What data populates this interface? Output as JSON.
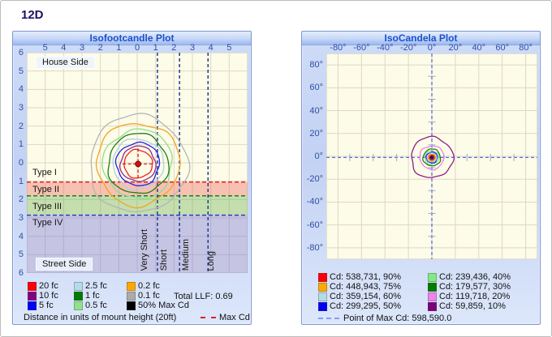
{
  "page_title": "12D",
  "panels": {
    "isofootcandle": {
      "title": "Isofootcandle Plot",
      "house_side_label": "House Side",
      "street_side_label": "Street Side",
      "zone_labels": [
        "Type I",
        "Type II",
        "Type III",
        "Type IV"
      ],
      "distribution_labels": [
        "Very Short",
        "Short",
        "Medium",
        "Long"
      ],
      "legend": [
        {
          "label": "20 fc",
          "color": "#fb0007"
        },
        {
          "label": "10 fc",
          "color": "#830083"
        },
        {
          "label": "5 fc",
          "color": "#0000f6"
        },
        {
          "label": "2.5 fc",
          "color": "#b4dce8"
        },
        {
          "label": "1 fc",
          "color": "#017c01"
        },
        {
          "label": "0.5 fc",
          "color": "#8fe38f"
        },
        {
          "label": "0.2 fc",
          "color": "#ffa900"
        },
        {
          "label": "0.1 fc",
          "color": "#ababab"
        },
        {
          "label": "50% Max Cd",
          "color": "#000000"
        }
      ],
      "total_llf_label": "Total LLF: 0.69",
      "footer_label": "Distance in units of mount height (20ft)",
      "max_cd_label": "Max Cd"
    },
    "isocandela": {
      "title": "IsoCandela Plot",
      "legend": [
        {
          "label": "Cd: 538,731, 90%",
          "color": "#fb0007"
        },
        {
          "label": "Cd: 448,943, 75%",
          "color": "#ffa900"
        },
        {
          "label": "Cd: 359,154, 60%",
          "color": "#b4dce8"
        },
        {
          "label": "Cd: 299,295, 50%",
          "color": "#0000f6"
        },
        {
          "label": "Cd: 239,436, 40%",
          "color": "#84e884"
        },
        {
          "label": "Cd: 179,577, 30%",
          "color": "#017c01"
        },
        {
          "label": "Cd: 119,718, 20%",
          "color": "#ee82ee"
        },
        {
          "label": "Cd: 59,859, 10%",
          "color": "#7c007c"
        }
      ],
      "max_point_label": "Point of Max Cd: 598,590.0"
    }
  },
  "chart_data": [
    {
      "type": "contour",
      "title": "Isofootcandle Plot",
      "axis_note": "Distance in units of mount height (20ft)",
      "x_tick_labels": [
        "5",
        "4",
        "3",
        "2",
        "1",
        "0",
        "1",
        "2",
        "3",
        "4",
        "5"
      ],
      "x_tick_values_mh": [
        -5,
        -4,
        -3,
        -2,
        -1,
        0,
        1,
        2,
        3,
        4,
        5
      ],
      "y_tick_labels": [
        "6",
        "5",
        "4",
        "3",
        "2",
        "1",
        "0",
        "1",
        "2",
        "3",
        "4",
        "5",
        "6"
      ],
      "x_range_mh": [
        -6,
        6
      ],
      "y_range_mh": [
        -6,
        6
      ],
      "grid": true,
      "center_mh": [
        0.05,
        0.06
      ],
      "contours": [
        {
          "label": "0.1 fc",
          "color": "#b4b4b4",
          "radius_mh": 2.65
        },
        {
          "label": "0.2 fc",
          "color": "#f2a41e",
          "radius_mh": 2.25
        },
        {
          "label": "0.5 fc",
          "color": "#8fdc8f",
          "radius_mh": 1.88
        },
        {
          "label": "1 fc",
          "color": "#1e7d1e",
          "radius_mh": 1.64
        },
        {
          "label": "2.5 fc",
          "color": "#aed0e2",
          "radius_mh": 1.38
        },
        {
          "label": "5 fc",
          "color": "#2121ee",
          "radius_mh": 1.17
        },
        {
          "label": "10 fc",
          "color": "#8c2a8c",
          "radius_mh": 0.96
        },
        {
          "label": "20 fc",
          "color": "#ee2222",
          "radius_mh": 0.77
        }
      ],
      "zone_boundaries": [
        {
          "street_y_mh": 1.05,
          "color": "#ee2222",
          "fill_below": "rgba(236,96,86,0.38)"
        },
        {
          "street_y_mh": 1.8,
          "color": "#1e7d1e",
          "fill_below": "rgba(110,178,88,0.40)"
        },
        {
          "street_y_mh": 2.85,
          "color": "#2a3bd0",
          "fill_below": "rgba(118,118,216,0.42)"
        }
      ],
      "longitudinal_lines_x_mh": [
        1.1,
        2.3,
        3.85
      ],
      "distribution_label_x_mh": [
        0.42,
        1.52,
        2.71,
        4.08
      ],
      "total_llf": 0.69
    },
    {
      "type": "contour",
      "title": "IsoCandela Plot",
      "x_tick_labels": [
        "-80°",
        "-60°",
        "-40°",
        "-20°",
        "0°",
        "20°",
        "40°",
        "60°",
        "80°"
      ],
      "x_tick_values_deg": [
        -80,
        -60,
        -40,
        -20,
        0,
        20,
        40,
        60,
        80
      ],
      "y_tick_labels": [
        "80°",
        "60°",
        "40°",
        "20°",
        "0°",
        "-20°",
        "-40°",
        "-60°",
        "-80°"
      ],
      "y_tick_values_deg": [
        80,
        60,
        40,
        20,
        0,
        -20,
        -40,
        -60,
        -80
      ],
      "x_range_deg": [
        -90,
        90
      ],
      "y_range_deg": [
        -90,
        90
      ],
      "grid": true,
      "center_deg": [
        0,
        1
      ],
      "crosshair_tick_deg": [
        -70,
        -50,
        -30,
        -10,
        10,
        30,
        50,
        70
      ],
      "contours": [
        {
          "cd": "59,859",
          "percent": "10%",
          "color": "#8b1f8b",
          "radius_deg": 17.8
        },
        {
          "cd": "119,718",
          "percent": "20%",
          "color": "#ee82ee",
          "radius_deg": 10.3
        },
        {
          "cd": "179,577",
          "percent": "30%",
          "color": "#1e7d1e",
          "radius_deg": 7.4
        },
        {
          "cd": "239,436",
          "percent": "40%",
          "color": "#80e080",
          "radius_deg": 5.9
        },
        {
          "cd": "299,295",
          "percent": "50%",
          "color": "#2121ee",
          "radius_deg": 4.7
        },
        {
          "cd": "359,154",
          "percent": "60%",
          "color": "#aed0e2",
          "radius_deg": 3.8
        },
        {
          "cd": "448,943",
          "percent": "75%",
          "color": "#ff9c00",
          "radius_deg": 2.9
        },
        {
          "cd": "538,731",
          "percent": "90%",
          "color": "#ee2222",
          "radius_deg": 2.1
        }
      ],
      "max_cd": "598,590.0"
    }
  ]
}
